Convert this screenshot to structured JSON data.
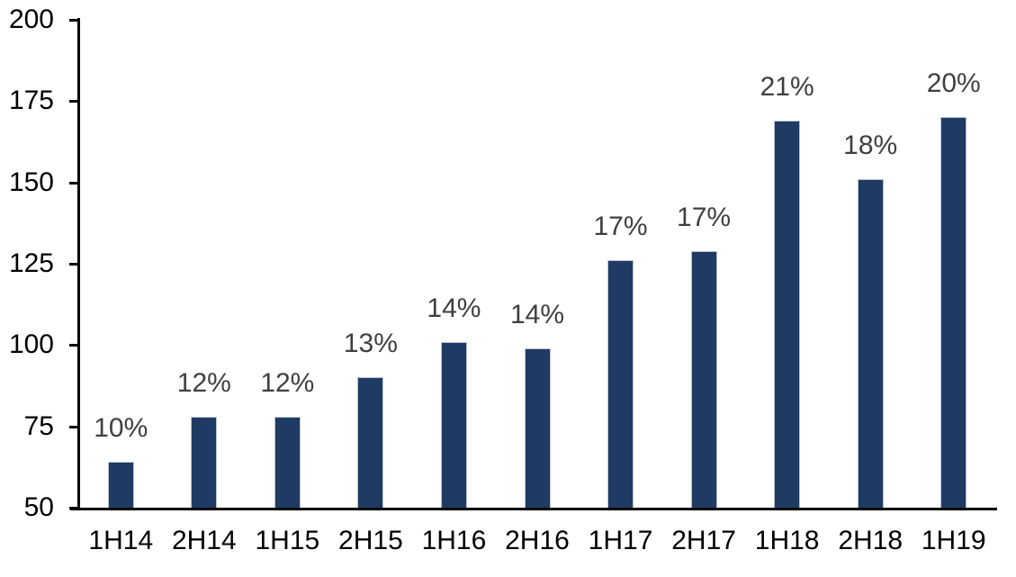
{
  "chart_data": {
    "type": "bar",
    "title": "",
    "xlabel": "",
    "ylabel": "",
    "categories": [
      "1H14",
      "2H14",
      "1H15",
      "2H15",
      "1H16",
      "2H16",
      "1H17",
      "2H17",
      "1H18",
      "2H18",
      "1H19"
    ],
    "values": [
      64,
      78,
      78,
      90,
      101,
      99,
      126,
      129,
      169,
      151,
      170
    ],
    "bar_labels": [
      "10%",
      "12%",
      "12%",
      "13%",
      "14%",
      "14%",
      "17%",
      "17%",
      "21%",
      "18%",
      "20%"
    ],
    "ylim": [
      50,
      200
    ],
    "yticks": [
      50,
      75,
      100,
      125,
      150,
      175,
      200
    ],
    "grid": false,
    "legend": false,
    "colors": {
      "bar_fill": "#1f3a63",
      "bar_border": "#b9c3d5",
      "data_label": "#3f3f3f",
      "axis": "#000000",
      "background": "#ffffff"
    }
  }
}
